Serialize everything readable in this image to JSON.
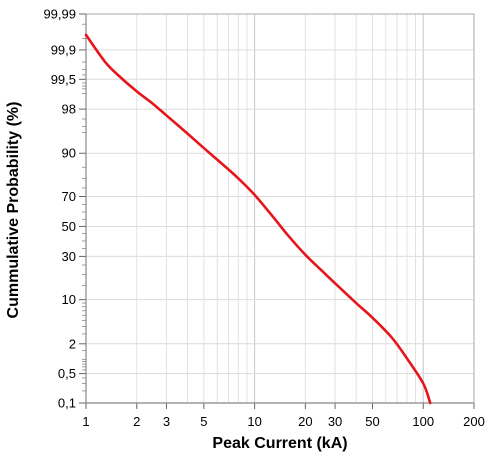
{
  "chart_data": {
    "type": "line",
    "xlabel": "Peak Current (kA)",
    "ylabel": "Cummulative Probability (%)",
    "x_scale": "log",
    "y_scale": "normal-probability",
    "xlim": [
      1,
      200
    ],
    "ylim": [
      0.1,
      99.99
    ],
    "grid": true,
    "x_ticks": [
      {
        "value": 1,
        "label": "1"
      },
      {
        "value": 2,
        "label": "2"
      },
      {
        "value": 3,
        "label": "3"
      },
      {
        "value": 5,
        "label": "5"
      },
      {
        "value": 10,
        "label": "10"
      },
      {
        "value": 20,
        "label": "20"
      },
      {
        "value": 30,
        "label": "30"
      },
      {
        "value": 50,
        "label": "50"
      },
      {
        "value": 100,
        "label": "100"
      },
      {
        "value": 200,
        "label": "200"
      }
    ],
    "y_ticks": [
      {
        "value": 99.99,
        "label": "99,99"
      },
      {
        "value": 99.9,
        "label": "99,9"
      },
      {
        "value": 99.5,
        "label": "99,5"
      },
      {
        "value": 98,
        "label": "98"
      },
      {
        "value": 90,
        "label": "90"
      },
      {
        "value": 70,
        "label": "70"
      },
      {
        "value": 50,
        "label": "50"
      },
      {
        "value": 30,
        "label": "30"
      },
      {
        "value": 10,
        "label": "10"
      },
      {
        "value": 2,
        "label": "2"
      },
      {
        "value": 0.5,
        "label": "0,5"
      },
      {
        "value": 0.1,
        "label": "0,1"
      }
    ],
    "series": [
      {
        "color": "#e8141b",
        "x": [
          1.0,
          1.3,
          1.6,
          2.0,
          2.5,
          3.0,
          4.0,
          5.0,
          6.5,
          8.0,
          10.0,
          13.0,
          16.0,
          20.0,
          25.0,
          30.0,
          40.0,
          50.0,
          65.0,
          80.0,
          100.0,
          110.0
        ],
        "y": [
          99.96,
          99.8,
          99.55,
          99.1,
          98.4,
          97.4,
          94.8,
          91.5,
          86.0,
          80.0,
          71.0,
          56.0,
          43.0,
          31.0,
          22.0,
          16.0,
          9.0,
          5.5,
          2.6,
          1.05,
          0.3,
          0.1
        ]
      }
    ]
  }
}
